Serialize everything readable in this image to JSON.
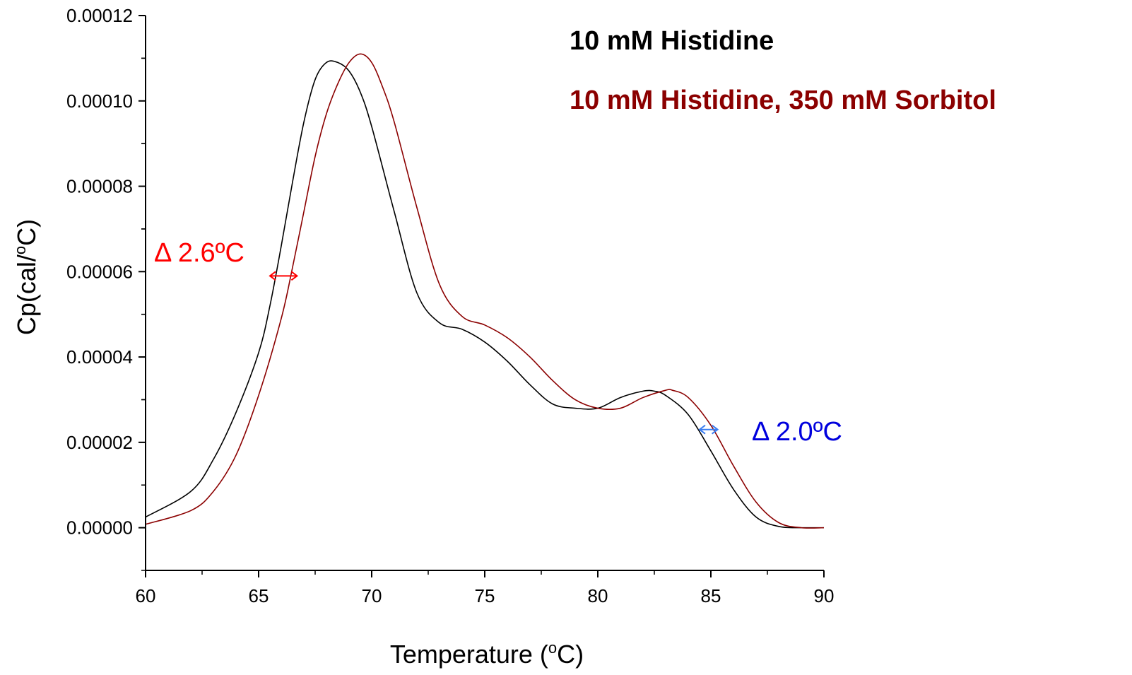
{
  "chart_data": {
    "type": "line",
    "xlabel": "Temperature (",
    "xlabel_sup": "o",
    "xlabel_end": "C)",
    "ylabel": "Cp(cal/",
    "ylabel_sup": "o",
    "ylabel_end": "C)",
    "xlim": [
      60,
      90
    ],
    "ylim": [
      -1e-05,
      0.00012
    ],
    "x_ticks": [
      "60",
      "65",
      "70",
      "75",
      "80",
      "85",
      "90"
    ],
    "y_ticks": [
      "0.00000",
      "0.00002",
      "0.00004",
      "0.00006",
      "0.00008",
      "0.00010",
      "0.00012"
    ],
    "grid": false,
    "legend_position": "top-right",
    "series": [
      {
        "name": "10 mM Histidine",
        "color": "#000000",
        "x": [
          60,
          62,
          63,
          64,
          65,
          65.5,
          66,
          66.5,
          67,
          67.5,
          68,
          68.5,
          69,
          69.5,
          70,
          71,
          72,
          73,
          74,
          75,
          76,
          77,
          78,
          79,
          80,
          81,
          82,
          82.5,
          83,
          84,
          85,
          86,
          87,
          88,
          89,
          89.5,
          90
        ],
        "y": [
          2.5e-06,
          8.5e-06,
          1.6e-05,
          2.7e-05,
          4.1e-05,
          5.2e-05,
          6.6e-05,
          8.1e-05,
          9.5e-05,
          0.000105,
          0.000109,
          0.000109,
          0.000107,
          0.000102,
          9.4e-05,
          7.4e-05,
          5.5e-05,
          4.8e-05,
          4.65e-05,
          4.35e-05,
          3.9e-05,
          3.35e-05,
          2.9e-05,
          2.8e-05,
          2.8e-05,
          3.05e-05,
          3.2e-05,
          3.2e-05,
          3.1e-05,
          2.65e-05,
          1.8e-05,
          9e-06,
          2.5e-06,
          3e-07,
          0.0,
          0.0,
          0.0
        ]
      },
      {
        "name": "10 mM Histidine, 350 mM Sorbitol",
        "color": "#8b0000",
        "x": [
          60,
          62,
          63,
          64,
          65,
          66,
          66.5,
          67,
          67.5,
          68,
          68.5,
          69,
          69.5,
          70,
          70.5,
          71,
          72,
          73,
          74,
          75,
          76,
          77,
          78,
          79,
          80,
          81,
          82,
          83,
          83.3,
          84,
          85,
          86,
          87,
          88,
          89,
          90
        ],
        "y": [
          8e-07,
          4e-06,
          8.5e-06,
          1.7e-05,
          3.1e-05,
          4.9e-05,
          6.1e-05,
          7.4e-05,
          8.7e-05,
          9.7e-05,
          0.000104,
          0.000109,
          0.000111,
          0.000109,
          0.000103,
          9.5e-05,
          7.5e-05,
          5.7e-05,
          4.95e-05,
          4.75e-05,
          4.45e-05,
          4e-05,
          3.45e-05,
          3e-05,
          2.8e-05,
          2.8e-05,
          3.05e-05,
          3.22e-05,
          3.22e-05,
          3.05e-05,
          2.4e-05,
          1.45e-05,
          6e-06,
          1.2e-06,
          0.0,
          0.0
        ]
      }
    ],
    "annotations": [
      {
        "id": "left-shift",
        "text": "Δ 2.6ºC",
        "color": "#ff0000",
        "arrow_x": [
          65.5,
          66.7
        ],
        "arrow_y": 5.9e-05
      },
      {
        "id": "right-shift",
        "text": "Δ 2.0ºC",
        "color": "#0000dd",
        "arrow_color": "#3a7df0",
        "arrow_x": [
          84.5,
          85.3
        ],
        "arrow_y": 2.3e-05
      }
    ]
  }
}
